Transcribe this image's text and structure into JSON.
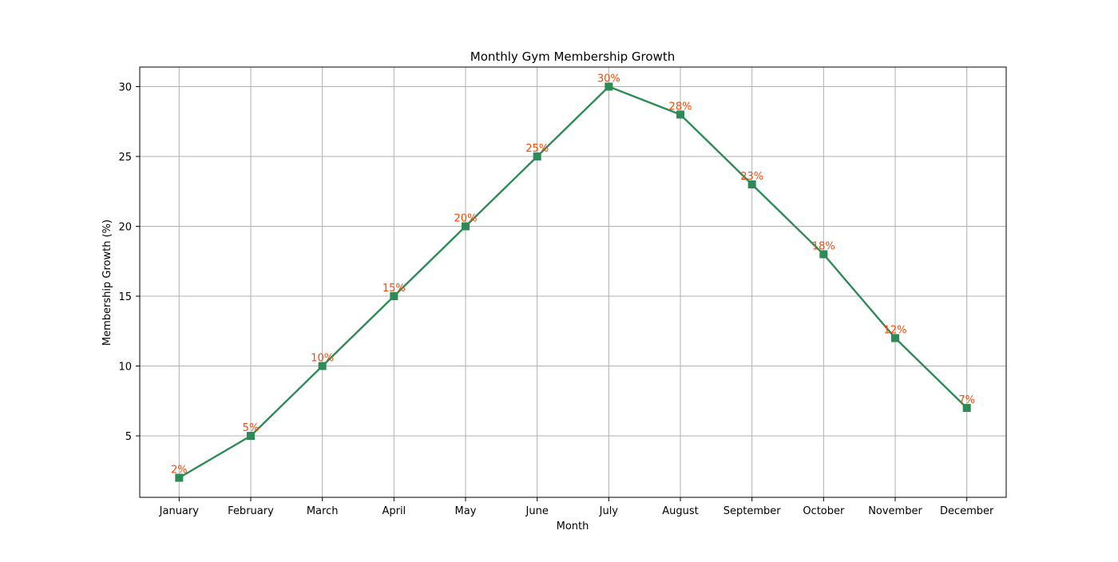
{
  "chart_data": {
    "type": "line",
    "title": "Monthly Gym Membership Growth",
    "xlabel": "Month",
    "ylabel": "Membership Growth (%)",
    "categories": [
      "January",
      "February",
      "March",
      "April",
      "May",
      "June",
      "July",
      "August",
      "September",
      "October",
      "November",
      "December"
    ],
    "series": [
      {
        "values": [
          2,
          5,
          10,
          15,
          20,
          25,
          30,
          28,
          23,
          18,
          12,
          7
        ],
        "labels": [
          "2%",
          "5%",
          "10%",
          "15%",
          "20%",
          "25%",
          "30%",
          "28%",
          "23%",
          "18%",
          "12%",
          "7%"
        ],
        "color": "#2e8b57",
        "marker": "square"
      }
    ],
    "yticks": [
      5,
      10,
      15,
      20,
      25,
      30
    ],
    "ylim": [
      0.6,
      31.4
    ],
    "grid": true,
    "legend": "none",
    "label_color": "#ff4500",
    "grid_color": "#b0b0b0"
  }
}
